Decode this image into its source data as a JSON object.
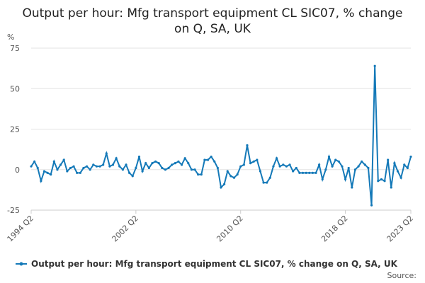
{
  "chart_data": {
    "type": "line",
    "title": "Output per hour: Mfg transport equipment CL SIC07, % change on Q, SA, UK",
    "y_label": "%",
    "source": "Source:",
    "categories": [
      "1994 Q2",
      null,
      null,
      null,
      null,
      null,
      null,
      null,
      null,
      null,
      null,
      null,
      null,
      null,
      null,
      null,
      null,
      null,
      null,
      null,
      null,
      null,
      null,
      null,
      null,
      null,
      null,
      null,
      null,
      null,
      null,
      null,
      "2002 Q2",
      null,
      null,
      null,
      null,
      null,
      null,
      null,
      null,
      null,
      null,
      null,
      null,
      null,
      null,
      null,
      null,
      null,
      null,
      null,
      null,
      null,
      null,
      null,
      null,
      null,
      null,
      null,
      null,
      null,
      null,
      null,
      "2010 Q2",
      null,
      null,
      null,
      null,
      null,
      null,
      null,
      null,
      null,
      null,
      null,
      null,
      null,
      null,
      null,
      null,
      null,
      null,
      null,
      null,
      null,
      null,
      null,
      null,
      null,
      null,
      null,
      null,
      null,
      null,
      null,
      "2018 Q2",
      null,
      null,
      null,
      null,
      null,
      null,
      null,
      null,
      null,
      null,
      null,
      null,
      null,
      null,
      null,
      null,
      null,
      null,
      null,
      "2023 Q2"
    ],
    "series": [
      {
        "name": "Output per hour: Mfg transport equipment CL SIC07, % change on Q, SA, UK",
        "color": "#1479b8",
        "values": [
          2,
          5,
          1,
          -7,
          -1,
          -2,
          -3,
          5,
          0,
          3,
          6,
          -1,
          1,
          2,
          -2,
          -2,
          1,
          2,
          0,
          3,
          2,
          2,
          3,
          10,
          2,
          3,
          7,
          2,
          0,
          3,
          -2,
          -4,
          1,
          8,
          -1,
          4,
          1,
          4,
          5,
          4,
          1,
          0,
          1,
          3,
          4,
          5,
          3,
          7,
          4,
          0,
          0,
          -3,
          -3,
          6,
          6,
          8,
          5,
          1,
          -11,
          -9,
          -1,
          -4,
          -5,
          -3,
          2,
          3,
          15,
          4,
          5,
          6,
          -1,
          -8,
          -8,
          -5,
          2,
          7,
          2,
          3,
          2,
          3,
          -1,
          1,
          -2,
          -2,
          -2,
          -2,
          -2,
          -2,
          3,
          -6,
          0,
          8,
          2,
          6,
          5,
          2,
          -6,
          1,
          -11,
          0,
          2,
          5,
          3,
          1,
          -22,
          64,
          -7,
          -6,
          -7,
          6,
          -11,
          4,
          -1,
          -5,
          3,
          1,
          8
        ]
      }
    ],
    "ylim": [
      -25,
      75
    ],
    "yticks": [
      -25,
      0,
      25,
      50,
      75
    ],
    "grid": true
  }
}
